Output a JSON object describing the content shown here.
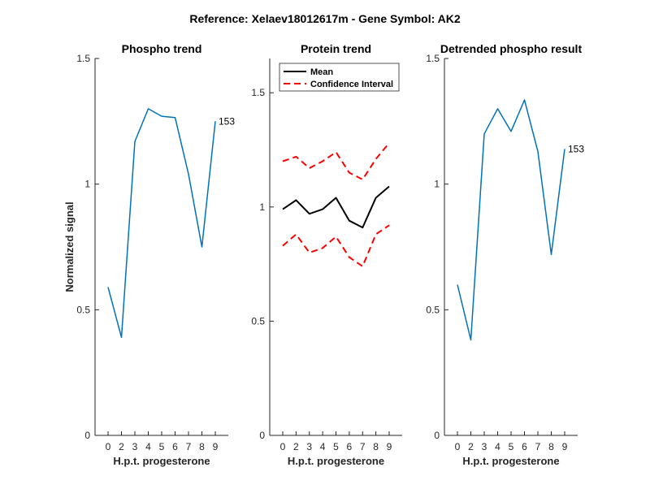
{
  "figure_title": "Reference:  Xelaev18012617m - Gene Symbol:  AK2",
  "chart_data": [
    {
      "type": "line",
      "title": "Phospho trend",
      "xlabel": "H.p.t. progesterone",
      "ylabel": "Normalized signal",
      "categories": [
        "0",
        "2",
        "3",
        "4",
        "5",
        "6",
        "7",
        "8",
        "9"
      ],
      "ylim": [
        0,
        1.5
      ],
      "yticks": [
        0,
        0.5,
        1,
        1.5
      ],
      "ytick_labels": [
        "0",
        "0.5",
        "1",
        "1.5"
      ],
      "grid": false,
      "series": [
        {
          "color": "#0072BD",
          "values": [
            0.59,
            0.39,
            1.17,
            1.3,
            1.27,
            1.265,
            1.04,
            0.75,
            1.25
          ]
        }
      ],
      "end_label": "153"
    },
    {
      "type": "line",
      "title": "Protein trend",
      "xlabel": "H.p.t. progesterone",
      "ylabel": "",
      "categories": [
        "0",
        "2",
        "3",
        "4",
        "5",
        "6",
        "7",
        "8",
        "9"
      ],
      "ylim": [
        0,
        1.65
      ],
      "yticks": [
        0,
        0.5,
        1,
        1.5
      ],
      "ytick_labels": [
        "0",
        "0.5",
        "1",
        "1.5"
      ],
      "grid": false,
      "legend_position": "top-left",
      "series": [
        {
          "name": "Mean",
          "color": "#000000",
          "style": "solid",
          "values": [
            0.99,
            1.03,
            0.97,
            0.99,
            1.04,
            0.94,
            0.91,
            1.04,
            1.09
          ]
        },
        {
          "name": "Confidence Interval",
          "color": "#FF0000",
          "style": "dashed",
          "values": [
            1.2,
            1.22,
            1.17,
            1.2,
            1.24,
            1.15,
            1.12,
            1.21,
            1.28
          ]
        },
        {
          "name": "",
          "color": "#FF0000",
          "style": "dashed",
          "values": [
            0.83,
            0.88,
            0.8,
            0.82,
            0.87,
            0.78,
            0.74,
            0.88,
            0.92
          ]
        }
      ]
    },
    {
      "type": "line",
      "title": "Detrended phospho result",
      "xlabel": "H.p.t. progesterone",
      "ylabel": "",
      "categories": [
        "0",
        "2",
        "3",
        "4",
        "5",
        "6",
        "7",
        "8",
        "9"
      ],
      "ylim": [
        0,
        1.5
      ],
      "yticks": [
        0,
        0.5,
        1,
        1.5
      ],
      "ytick_labels": [
        "0",
        "0.5",
        "1",
        "1.5"
      ],
      "grid": false,
      "series": [
        {
          "color": "#0072BD",
          "values": [
            0.6,
            0.38,
            1.2,
            1.3,
            1.21,
            1.335,
            1.13,
            0.72,
            1.14
          ]
        }
      ],
      "end_label": "153"
    }
  ]
}
